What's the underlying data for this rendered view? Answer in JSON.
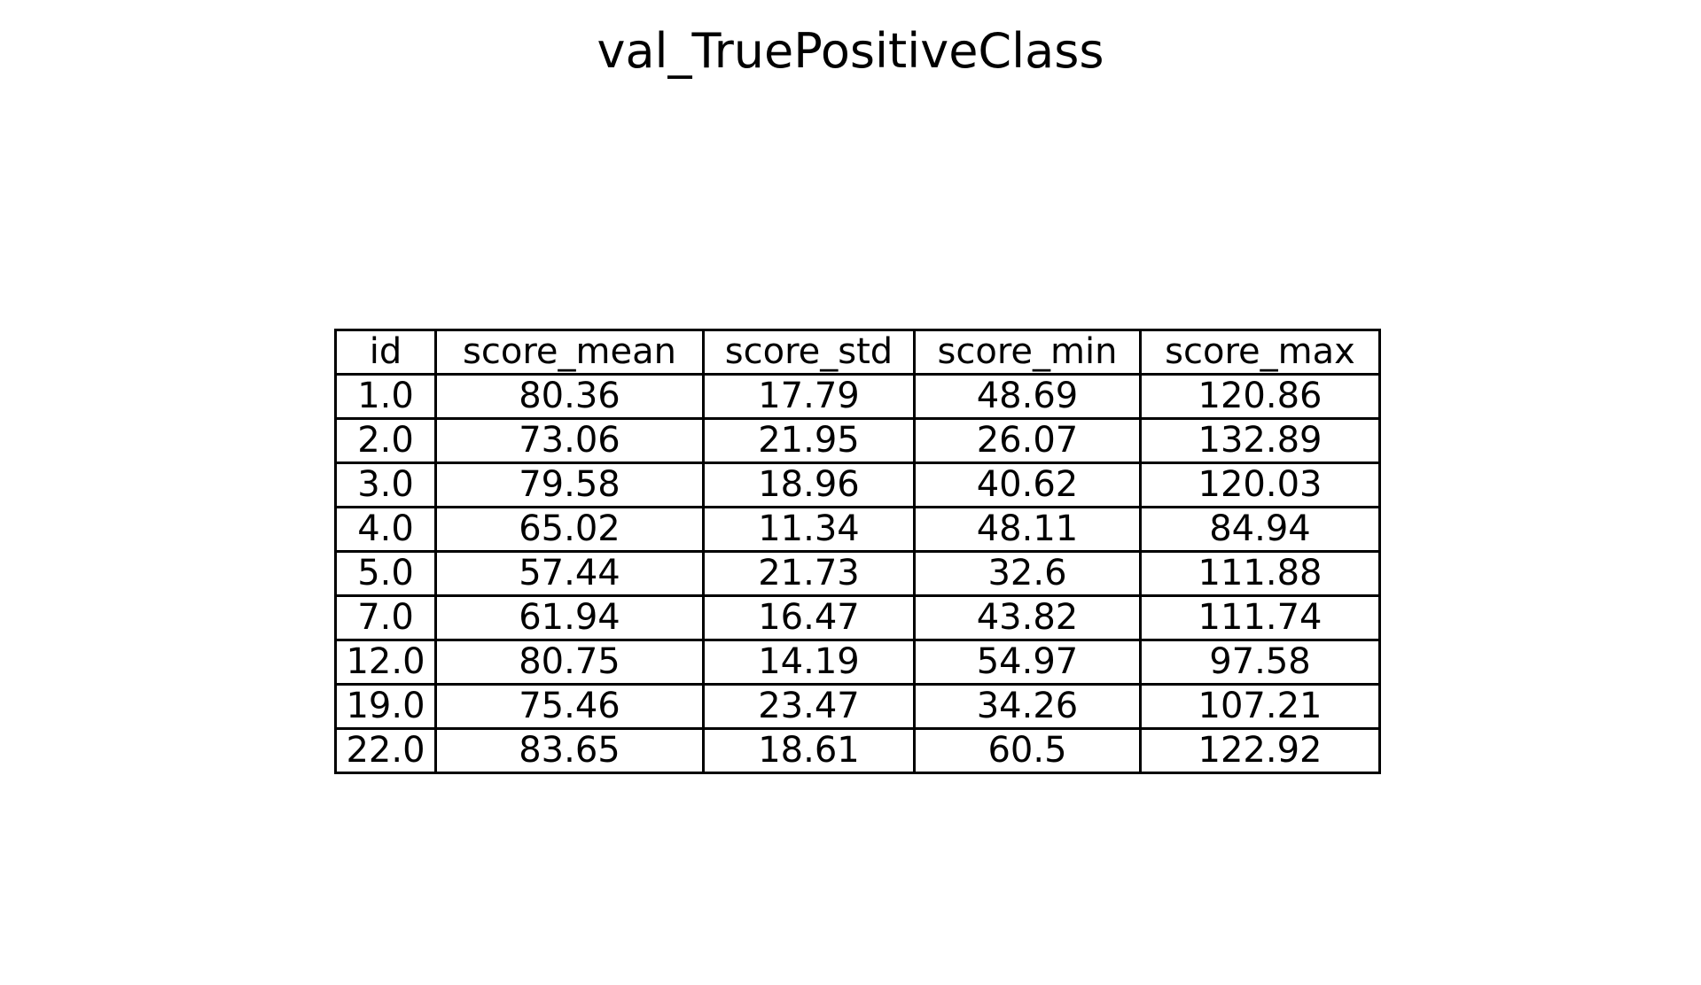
{
  "chart_data": {
    "type": "table",
    "title": "val_TruePositiveClass",
    "columns": [
      "id",
      "score_mean",
      "score_std",
      "score_min",
      "score_max"
    ],
    "rows": [
      [
        "1.0",
        "80.36",
        "17.79",
        "48.69",
        "120.86"
      ],
      [
        "2.0",
        "73.06",
        "21.95",
        "26.07",
        "132.89"
      ],
      [
        "3.0",
        "79.58",
        "18.96",
        "40.62",
        "120.03"
      ],
      [
        "4.0",
        "65.02",
        "11.34",
        "48.11",
        "84.94"
      ],
      [
        "5.0",
        "57.44",
        "21.73",
        "32.6",
        "111.88"
      ],
      [
        "7.0",
        "61.94",
        "16.47",
        "43.82",
        "111.74"
      ],
      [
        "12.0",
        "80.75",
        "14.19",
        "54.97",
        "97.58"
      ],
      [
        "19.0",
        "75.46",
        "23.47",
        "34.26",
        "107.21"
      ],
      [
        "22.0",
        "83.65",
        "18.61",
        "60.5",
        "122.92"
      ]
    ]
  }
}
